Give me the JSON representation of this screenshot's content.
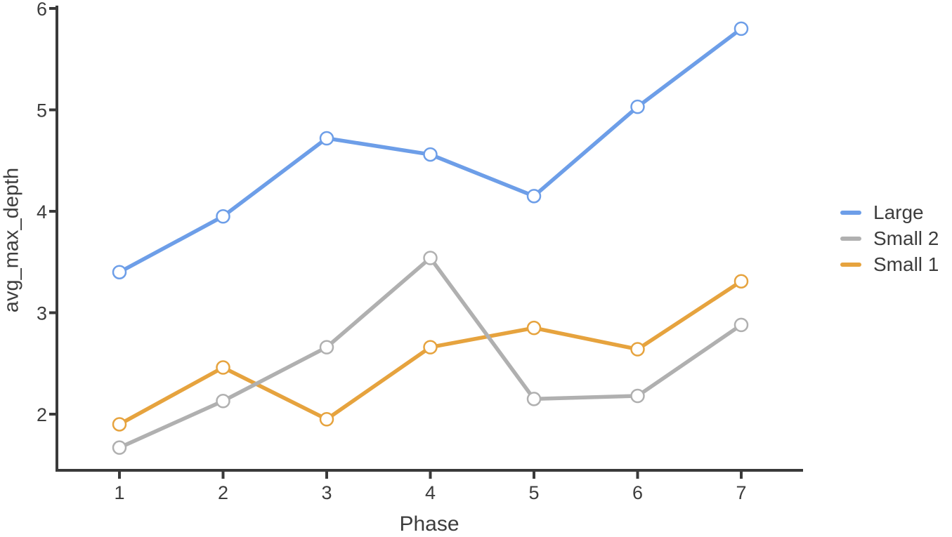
{
  "chart_data": {
    "type": "line",
    "title": "",
    "xlabel": "Phase",
    "ylabel": "avg_max_depth",
    "x": [
      1,
      2,
      3,
      4,
      5,
      6,
      7
    ],
    "xticks": [
      "1",
      "2",
      "3",
      "4",
      "5",
      "6",
      "7"
    ],
    "yticks": [
      "2",
      "3",
      "4",
      "5",
      "6"
    ],
    "ytick_values": [
      2,
      3,
      4,
      5,
      6
    ],
    "xlim": [
      0.4,
      7.6
    ],
    "ylim": [
      1.45,
      6.02
    ],
    "grid": false,
    "legend_position": "right",
    "marker": "open-circle",
    "series": [
      {
        "name": "Large",
        "color": "#6d9ee8",
        "values": [
          3.4,
          3.95,
          4.72,
          4.56,
          4.15,
          5.03,
          5.8
        ]
      },
      {
        "name": "Small 2",
        "color": "#b0b0b0",
        "values": [
          1.67,
          2.13,
          2.66,
          3.54,
          2.15,
          2.18,
          2.88
        ]
      },
      {
        "name": "Small 1",
        "color": "#e6a33e",
        "values": [
          1.9,
          2.46,
          1.95,
          2.66,
          2.85,
          2.64,
          3.31
        ]
      }
    ],
    "axis_color": "#3a3a3a",
    "text_color": "#3d3d3d",
    "background": "#ffffff"
  }
}
